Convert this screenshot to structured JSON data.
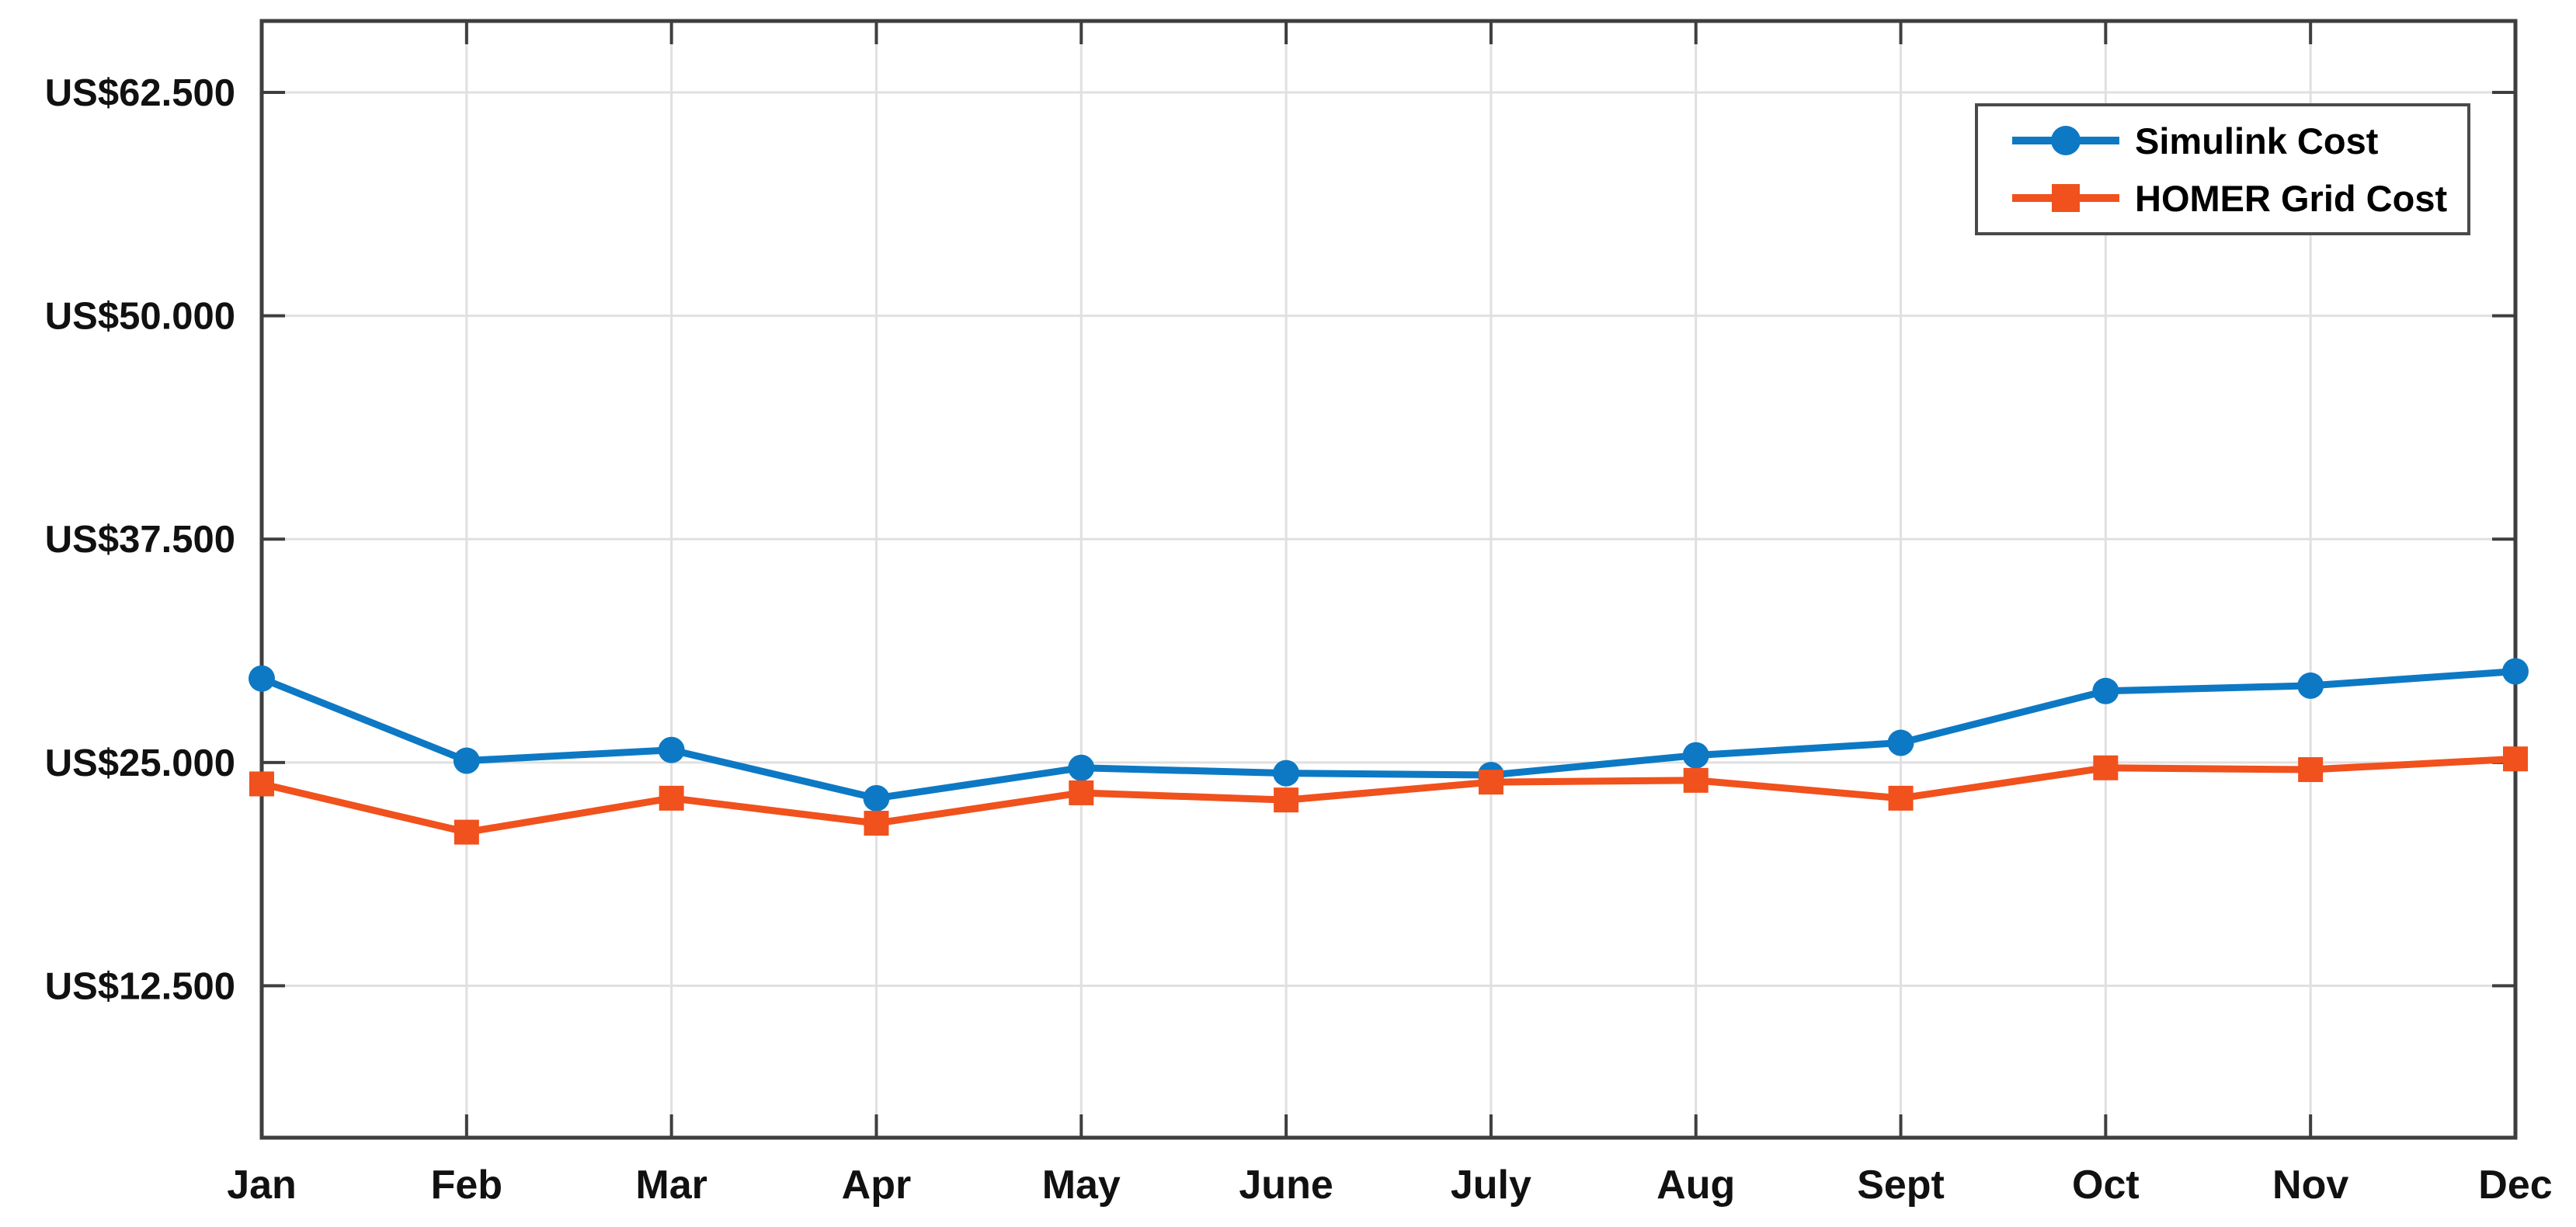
{
  "chart_data": {
    "type": "line",
    "title": "",
    "xlabel": "",
    "ylabel": "",
    "grid": true,
    "legend_position": "top-right",
    "categories": [
      "Jan",
      "Feb",
      "Mar",
      "Apr",
      "May",
      "June",
      "July",
      "Aug",
      "Sept",
      "Oct",
      "Nov",
      "Dec"
    ],
    "y_axis": {
      "currency_prefix": "US$",
      "tick_values": [
        12500,
        25000,
        37500,
        50000,
        62500
      ],
      "tick_labels": [
        "US$12.500",
        "US$25.000",
        "US$37.500",
        "US$50.000",
        "US$62.500"
      ],
      "ylim": [
        4000,
        66500
      ]
    },
    "series": [
      {
        "name": "Simulink Cost",
        "marker": "circle",
        "color": "#0d79c4",
        "values": [
          29700,
          25100,
          25700,
          23000,
          24700,
          24400,
          24300,
          25400,
          26100,
          29000,
          29300,
          30100
        ]
      },
      {
        "name": "HOMER Grid Cost",
        "marker": "square",
        "color": "#f0511d",
        "values": [
          23800,
          21100,
          23000,
          21600,
          23300,
          22900,
          23900,
          24000,
          23000,
          24700,
          24600,
          25200
        ]
      }
    ],
    "style": {
      "axis_color": "#3e3e3e",
      "grid_color": "#e0e0e0",
      "background": "#ffffff",
      "legend_border_color": "#4a4a4a"
    }
  }
}
